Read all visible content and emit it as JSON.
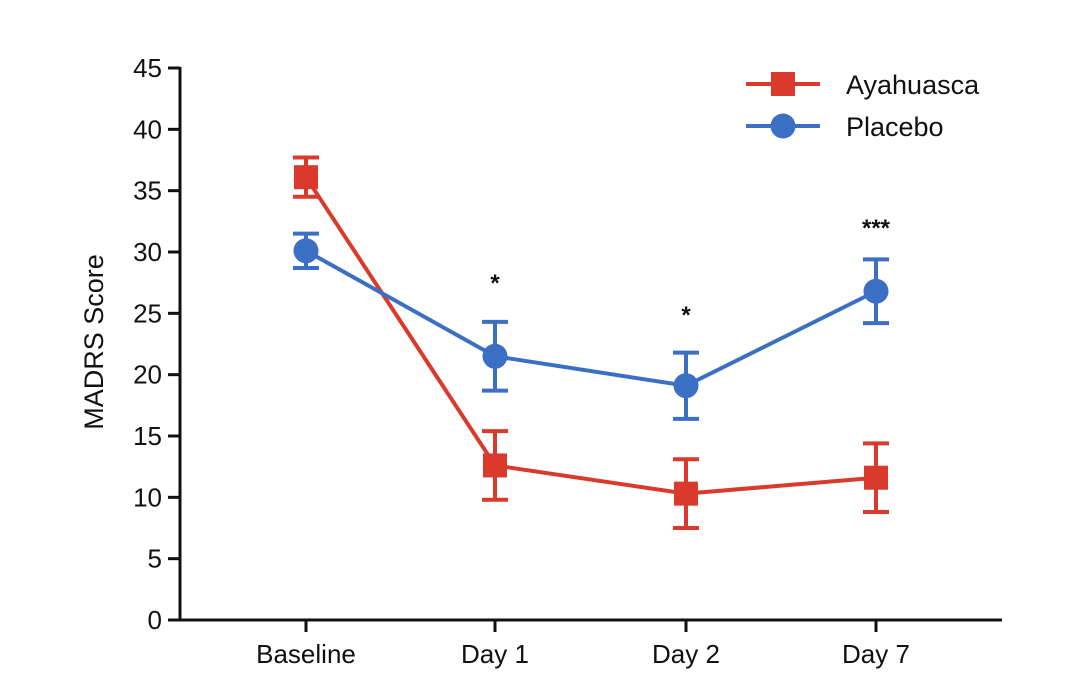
{
  "chart_data": {
    "type": "line",
    "title": "",
    "xlabel": "",
    "ylabel": "MADRS Score",
    "categories": [
      "Baseline",
      "Day 1",
      "Day 2",
      "Day 7"
    ],
    "ylim": [
      0,
      45
    ],
    "yticks": [
      0,
      5,
      10,
      15,
      20,
      25,
      30,
      35,
      40,
      45
    ],
    "grid": false,
    "legend_position": "top-right",
    "series": [
      {
        "name": "Ayahuasca",
        "color": "#d93a2b",
        "marker": "square",
        "values": [
          36.1,
          12.6,
          10.3,
          11.6
        ],
        "error": [
          1.6,
          2.8,
          2.8,
          2.8
        ]
      },
      {
        "name": "Placebo",
        "color": "#3b6fc4",
        "marker": "circle",
        "values": [
          30.1,
          21.5,
          19.1,
          26.8
        ],
        "error": [
          1.4,
          2.8,
          2.7,
          2.6
        ]
      }
    ],
    "annotations": [
      {
        "category": "Day 1",
        "text": "*",
        "y": 27.8
      },
      {
        "category": "Day 2",
        "text": "*",
        "y": 25.2
      },
      {
        "category": "Day 7",
        "text": "***",
        "y": 32.3
      }
    ]
  }
}
